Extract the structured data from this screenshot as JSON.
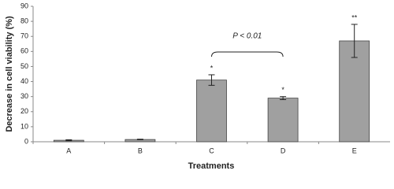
{
  "chart_data": {
    "type": "bar",
    "y_label": "Decrease in cell viability (%)",
    "x_label": "Treatments",
    "categories": [
      "A",
      "B",
      "C",
      "D",
      "E"
    ],
    "values": [
      1,
      1.5,
      41,
      29,
      67
    ],
    "errors": [
      0.3,
      0.2,
      3.5,
      1,
      11
    ],
    "significance": [
      null,
      null,
      "*",
      "*",
      "**"
    ],
    "annotation": "P < 0.01",
    "color": "#a0a0a0",
    "ylim": [
      0,
      90
    ],
    "yticks": [
      0,
      10,
      20,
      30,
      40,
      50,
      60,
      70,
      80,
      90
    ]
  }
}
